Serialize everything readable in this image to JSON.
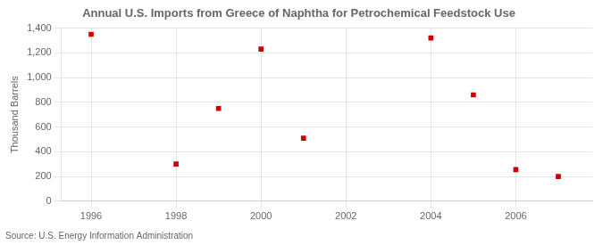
{
  "chart_data": {
    "type": "scatter",
    "title": "Annual U.S. Imports from Greece of Naphtha for Petrochemical Feedstock Use",
    "ylabel": "Thousand Barrels",
    "annotations": [
      "Source: U.S. Energy Information Administration"
    ],
    "x": [
      1996,
      1998,
      1999,
      2000,
      2001,
      2004,
      2005,
      2006,
      2007
    ],
    "values": [
      1350,
      300,
      750,
      1230,
      510,
      1320,
      860,
      255,
      200
    ],
    "color": "#cc0000",
    "marker": "square",
    "xlim": [
      1995.3,
      2007.8
    ],
    "xticks": [
      1996,
      1998,
      2000,
      2002,
      2004,
      2006
    ],
    "ylim": [
      0,
      1400
    ],
    "yticks": [
      0,
      200,
      400,
      600,
      800,
      {
        "value": 1000,
        "label": "1,000"
      },
      {
        "value": 1200,
        "label": "1,200"
      },
      {
        "value": 1400,
        "label": "1,400"
      }
    ],
    "grid": true
  }
}
